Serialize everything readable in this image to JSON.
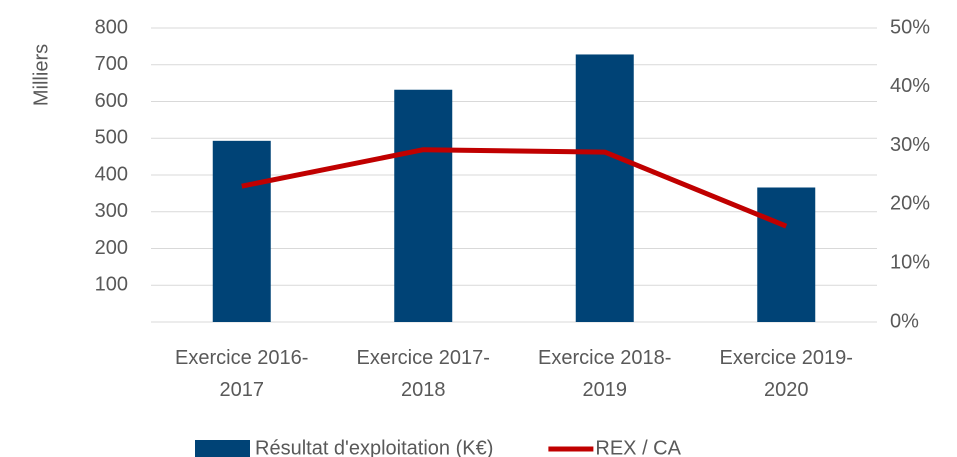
{
  "chart_data": {
    "type": "bar_line",
    "y_axis_label": "Milliers",
    "categories": [
      "Exercice 2016-2017",
      "Exercice 2017-2018",
      "Exercice 2018-2019",
      "Exercice 2019-2020"
    ],
    "series": [
      {
        "name": "Résultat d'exploitation (K€)",
        "type": "bar",
        "color": "#004376",
        "values": [
          493,
          632,
          728,
          366
        ]
      },
      {
        "name": "REX / CA",
        "type": "line",
        "axis": "y2",
        "color": "#c00000",
        "values": [
          23.1,
          29.3,
          28.9,
          16.3
        ]
      }
    ],
    "ylim": [
      0,
      800
    ],
    "yticks": [
      100,
      200,
      300,
      400,
      500,
      600,
      700,
      800
    ],
    "y2lim": [
      0,
      50
    ],
    "y2ticks": [
      {
        "value": 0,
        "label": "0%"
      },
      {
        "value": 10,
        "label": "10%"
      },
      {
        "value": 20,
        "label": "20%"
      },
      {
        "value": 30,
        "label": "30%"
      },
      {
        "value": 40,
        "label": "40%"
      },
      {
        "value": 50,
        "label": "50%"
      }
    ],
    "grid": true,
    "legend": "bottom"
  }
}
